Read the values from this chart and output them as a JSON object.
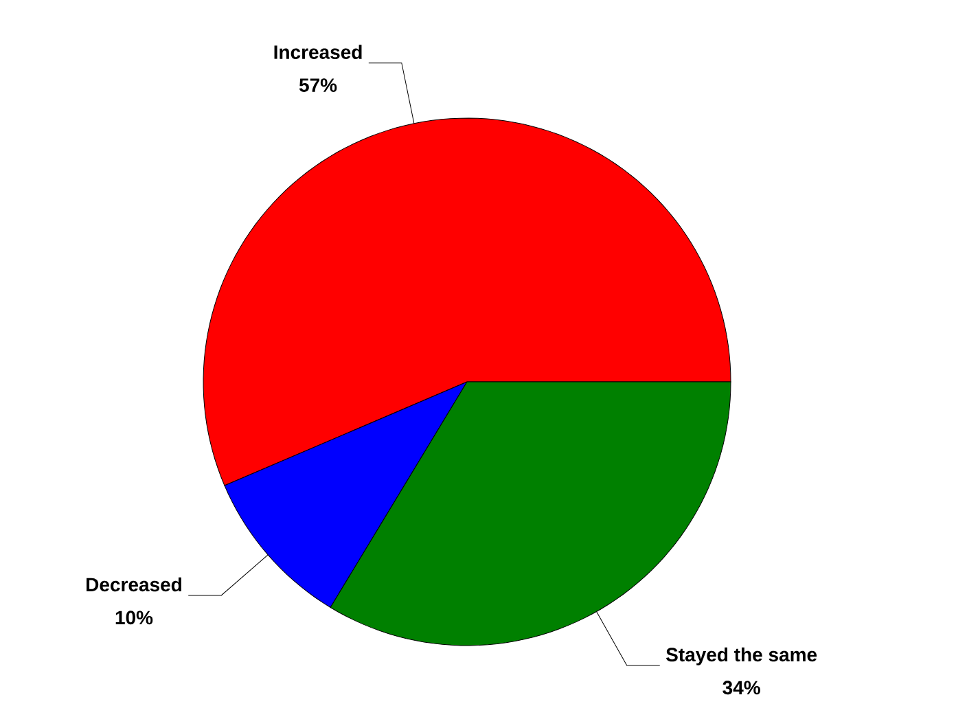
{
  "chart_data": {
    "type": "pie",
    "categories": [
      "Increased",
      "Decreased",
      "Stayed the same"
    ],
    "values": [
      57,
      10,
      34
    ],
    "colors": [
      "#ff0000",
      "#0000ff",
      "#008000"
    ],
    "value_labels": [
      "57%",
      "10%",
      "34%"
    ]
  }
}
